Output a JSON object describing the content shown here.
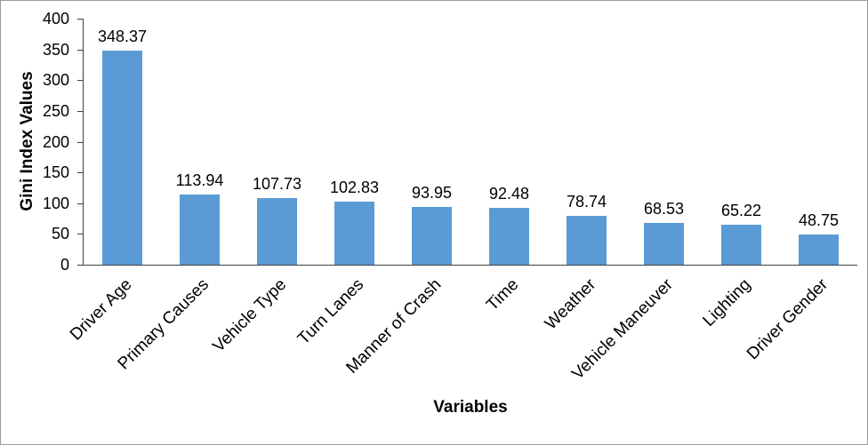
{
  "chart_data": {
    "type": "bar",
    "title": "",
    "categories": [
      "Driver Age",
      "Primary Causes",
      "Vehicle Type",
      "Turn Lanes",
      "Manner of Crash",
      "Time",
      "Weather",
      "Vehicle Maneuver",
      "Lighting",
      "Driver Gender"
    ],
    "values": [
      348.37,
      113.94,
      107.73,
      102.83,
      93.95,
      92.48,
      78.74,
      68.53,
      65.22,
      48.75
    ],
    "value_labels": [
      "348.37",
      "113.94",
      "107.73",
      "102.83",
      "93.95",
      "92.48",
      "78.74",
      "68.53",
      "65.22",
      "48.75"
    ],
    "xlabel": "Variables",
    "ylabel": "Gini Index Values",
    "ylim": [
      0,
      400
    ],
    "ytick_interval": 50,
    "yticks": [
      0,
      50,
      100,
      150,
      200,
      250,
      300,
      350,
      400
    ],
    "grid": false,
    "legend": false,
    "colors": {
      "bar": "#5B9BD5",
      "axis": "#404040",
      "text": "#000000",
      "frame_border": "#9b9b9b",
      "background": "#ffffff"
    }
  }
}
